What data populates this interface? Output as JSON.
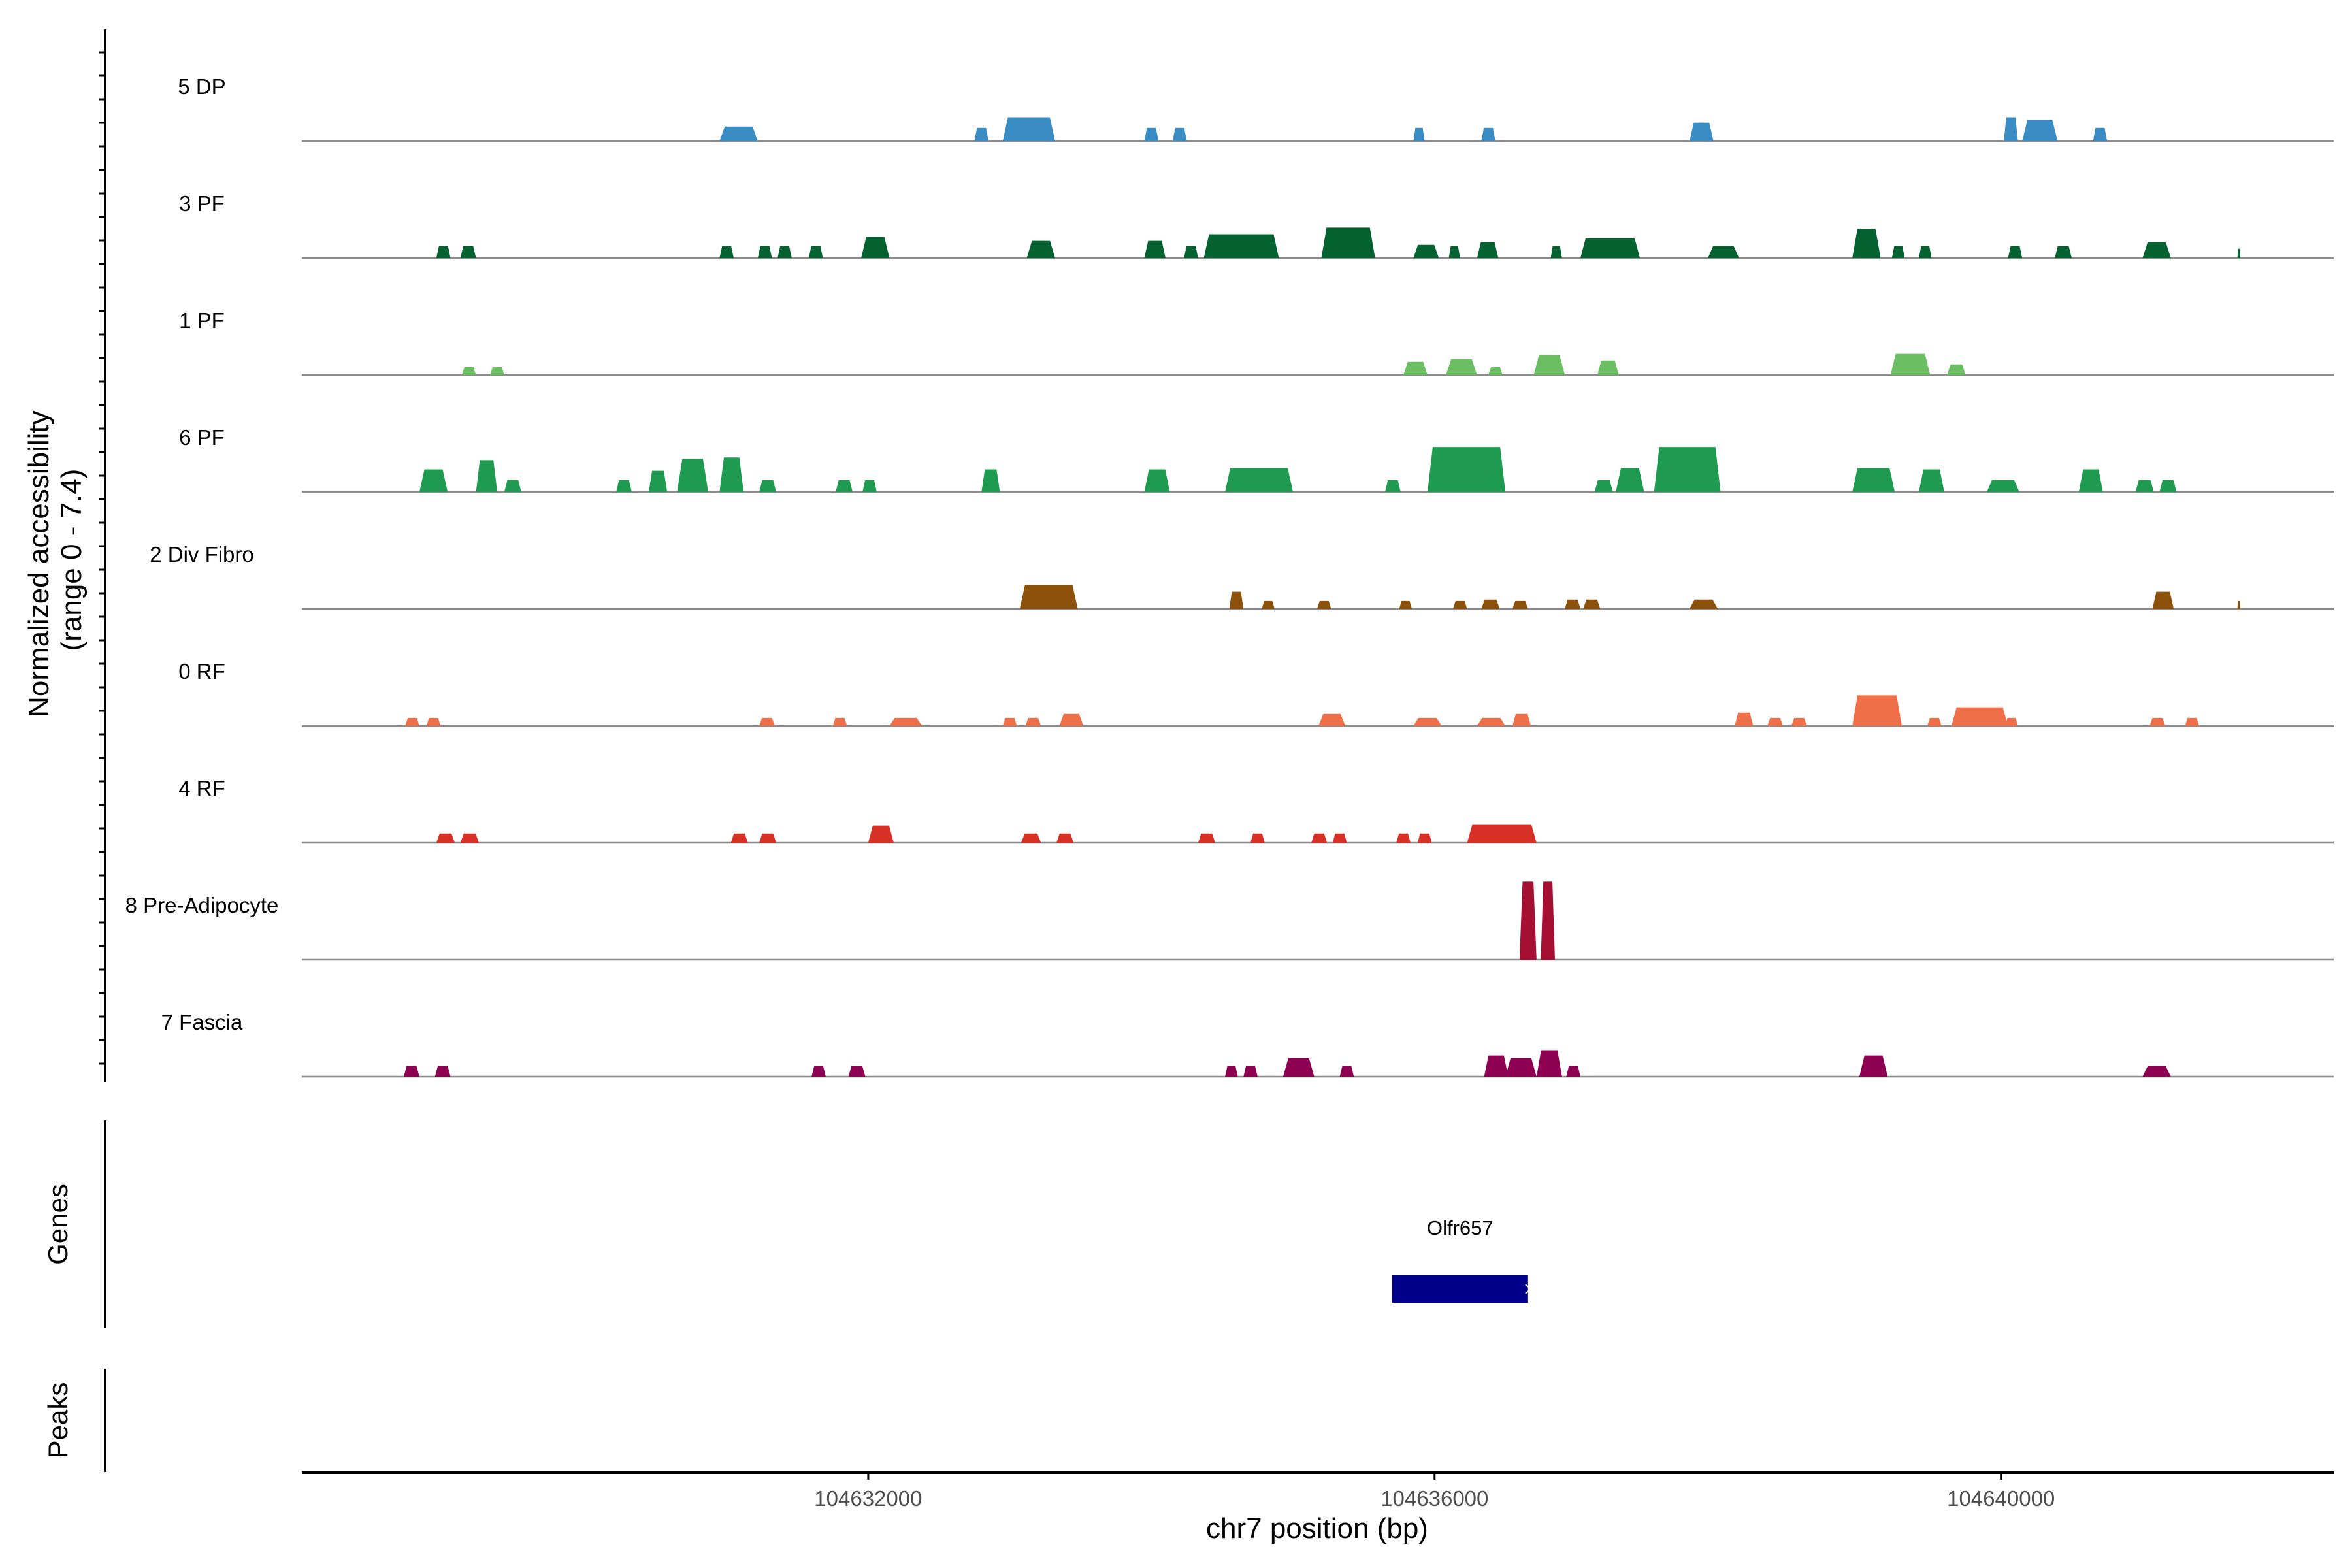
{
  "chart_data": {
    "type": "area",
    "title": "",
    "xlabel": "chr7 position (bp)",
    "ylabel": "Normalized accessibility\n(range 0 - 7.4)",
    "y_range": [
      0,
      7.4
    ],
    "x_range": [
      104628000,
      104642350
    ],
    "x_ticks": [
      104632000,
      104636000,
      104640000
    ],
    "x_tick_labels": [
      "104632000",
      "104636000",
      "104640000"
    ],
    "grid": false,
    "tracks": [
      {
        "name": "5 DP",
        "color": "#3a8cc4",
        "peaks": [
          [
            104630950,
            104631220,
            1.1
          ],
          [
            104632750,
            104632850,
            1.0
          ],
          [
            104632950,
            104633320,
            1.8
          ],
          [
            104633950,
            104634050,
            1.0
          ],
          [
            104634150,
            104634250,
            1.0
          ],
          [
            104635850,
            104635930,
            1.0
          ],
          [
            104636330,
            104636430,
            1.0
          ],
          [
            104637800,
            104637970,
            1.4
          ],
          [
            104640020,
            104640120,
            1.8
          ],
          [
            104640150,
            104640400,
            1.6
          ],
          [
            104640650,
            104640750,
            1.0
          ]
        ]
      },
      {
        "name": "3 PF",
        "color": "#03622f",
        "peaks": [
          [
            104628950,
            104629050,
            0.9
          ],
          [
            104629120,
            104629230,
            0.9
          ],
          [
            104630950,
            104631050,
            0.9
          ],
          [
            104631220,
            104631320,
            0.9
          ],
          [
            104631360,
            104631460,
            0.9
          ],
          [
            104631580,
            104631680,
            0.9
          ],
          [
            104631950,
            104632150,
            1.6
          ],
          [
            104633120,
            104633320,
            1.3
          ],
          [
            104633950,
            104634100,
            1.3
          ],
          [
            104634230,
            104634330,
            0.9
          ],
          [
            104634370,
            104634900,
            1.8
          ],
          [
            104635200,
            104635580,
            2.3
          ],
          [
            104635850,
            104636030,
            1.0
          ],
          [
            104636100,
            104636180,
            0.9
          ],
          [
            104636300,
            104636450,
            1.2
          ],
          [
            104636820,
            104636900,
            0.9
          ],
          [
            104637030,
            104637450,
            1.5
          ],
          [
            104637930,
            104638150,
            0.9
          ],
          [
            104638950,
            104639150,
            2.2
          ],
          [
            104639230,
            104639320,
            0.9
          ],
          [
            104639420,
            104639510,
            0.9
          ],
          [
            104640050,
            104640150,
            0.9
          ],
          [
            104640380,
            104640500,
            0.9
          ],
          [
            104641000,
            104641200,
            1.2
          ],
          [
            104641670,
            104641690,
            0.7
          ]
        ]
      },
      {
        "name": "1 PF",
        "color": "#6cbe63",
        "peaks": [
          [
            104629130,
            104629230,
            0.6
          ],
          [
            104629330,
            104629430,
            0.6
          ],
          [
            104635780,
            104635950,
            1.0
          ],
          [
            104636080,
            104636300,
            1.2
          ],
          [
            104636380,
            104636480,
            0.6
          ],
          [
            104636700,
            104636920,
            1.5
          ],
          [
            104637150,
            104637300,
            1.1
          ],
          [
            104639220,
            104639500,
            1.6
          ],
          [
            104639620,
            104639750,
            0.8
          ]
        ]
      },
      {
        "name": "6 PF",
        "color": "#1e9b51",
        "peaks": [
          [
            104628830,
            104629030,
            1.7
          ],
          [
            104629230,
            104629380,
            2.4
          ],
          [
            104629430,
            104629550,
            0.9
          ],
          [
            104630220,
            104630330,
            0.9
          ],
          [
            104630450,
            104630580,
            1.6
          ],
          [
            104630650,
            104630870,
            2.5
          ],
          [
            104630950,
            104631120,
            2.6
          ],
          [
            104631230,
            104631350,
            0.9
          ],
          [
            104631770,
            104631890,
            0.9
          ],
          [
            104631960,
            104632060,
            0.9
          ],
          [
            104632800,
            104632930,
            1.7
          ],
          [
            104633950,
            104634130,
            1.7
          ],
          [
            104634520,
            104635000,
            1.8
          ],
          [
            104635650,
            104635760,
            0.9
          ],
          [
            104635950,
            104636500,
            3.4
          ],
          [
            104637130,
            104637260,
            0.9
          ],
          [
            104637280,
            104637480,
            1.8
          ],
          [
            104637550,
            104638020,
            3.4
          ],
          [
            104638950,
            104639250,
            1.8
          ],
          [
            104639420,
            104639600,
            1.7
          ],
          [
            104639900,
            104640130,
            0.9
          ],
          [
            104640550,
            104640720,
            1.7
          ],
          [
            104640950,
            104641080,
            0.9
          ],
          [
            104641120,
            104641240,
            0.9
          ]
        ]
      },
      {
        "name": "2 Div Fibro",
        "color": "#8c510a",
        "peaks": [
          [
            104633070,
            104633480,
            1.8
          ],
          [
            104634550,
            104634650,
            1.3
          ],
          [
            104634780,
            104634870,
            0.6
          ],
          [
            104635170,
            104635270,
            0.6
          ],
          [
            104635750,
            104635840,
            0.6
          ],
          [
            104636130,
            104636230,
            0.6
          ],
          [
            104636330,
            104636460,
            0.7
          ],
          [
            104636550,
            104636660,
            0.6
          ],
          [
            104636920,
            104637030,
            0.7
          ],
          [
            104637050,
            104637170,
            0.7
          ],
          [
            104637800,
            104638000,
            0.7
          ],
          [
            104641070,
            104641220,
            1.3
          ],
          [
            104641670,
            104641690,
            0.6
          ]
        ]
      },
      {
        "name": "0 RF",
        "color": "#ee6f48",
        "peaks": [
          [
            104628730,
            104628830,
            0.6
          ],
          [
            104628880,
            104628980,
            0.6
          ],
          [
            104631230,
            104631340,
            0.6
          ],
          [
            104631750,
            104631850,
            0.6
          ],
          [
            104632150,
            104632380,
            0.6
          ],
          [
            104632950,
            104633050,
            0.6
          ],
          [
            104633110,
            104633220,
            0.6
          ],
          [
            104633350,
            104633520,
            0.9
          ],
          [
            104635180,
            104635370,
            0.9
          ],
          [
            104635850,
            104636050,
            0.6
          ],
          [
            104636300,
            104636500,
            0.6
          ],
          [
            104636550,
            104636680,
            0.9
          ],
          [
            104638120,
            104638250,
            1.0
          ],
          [
            104638350,
            104638460,
            0.6
          ],
          [
            104638520,
            104638630,
            0.6
          ],
          [
            104638950,
            104639300,
            2.3
          ],
          [
            104639480,
            104639580,
            0.6
          ],
          [
            104639650,
            104640050,
            1.4
          ],
          [
            104640030,
            104640120,
            0.6
          ],
          [
            104641050,
            104641160,
            0.6
          ],
          [
            104641300,
            104641400,
            0.6
          ]
        ]
      },
      {
        "name": "4 RF",
        "color": "#d73027",
        "peaks": [
          [
            104628950,
            104629080,
            0.7
          ],
          [
            104629120,
            104629250,
            0.7
          ],
          [
            104631030,
            104631150,
            0.7
          ],
          [
            104631230,
            104631350,
            0.7
          ],
          [
            104632000,
            104632180,
            1.3
          ],
          [
            104633080,
            104633220,
            0.7
          ],
          [
            104633330,
            104633450,
            0.7
          ],
          [
            104634330,
            104634450,
            0.7
          ],
          [
            104634700,
            104634800,
            0.7
          ],
          [
            104635130,
            104635240,
            0.7
          ],
          [
            104635280,
            104635380,
            0.7
          ],
          [
            104635730,
            104635830,
            0.7
          ],
          [
            104635880,
            104635980,
            0.7
          ],
          [
            104636230,
            104636720,
            1.4
          ]
        ]
      },
      {
        "name": "8 Pre-Adipocyte",
        "color": "#a50f32",
        "peaks": [
          [
            104636600,
            104636720,
            5.9
          ],
          [
            104636750,
            104636850,
            5.9
          ]
        ]
      },
      {
        "name": "7 Fascia",
        "color": "#8e0152",
        "peaks": [
          [
            104628720,
            104628830,
            0.8
          ],
          [
            104628940,
            104629050,
            0.8
          ],
          [
            104631600,
            104631700,
            0.8
          ],
          [
            104631860,
            104631980,
            0.8
          ],
          [
            104634520,
            104634610,
            0.8
          ],
          [
            104634650,
            104634750,
            0.8
          ],
          [
            104634930,
            104635150,
            1.4
          ],
          [
            104635330,
            104635430,
            0.8
          ],
          [
            104636350,
            104636520,
            1.6
          ],
          [
            104636500,
            104636720,
            1.4
          ],
          [
            104636720,
            104636900,
            2.0
          ],
          [
            104636930,
            104637030,
            0.8
          ],
          [
            104639000,
            104639200,
            1.6
          ],
          [
            104641000,
            104641200,
            0.8
          ]
        ]
      }
    ],
    "panels": {
      "accessibility": "",
      "genes": "Genes",
      "peaks": "Peaks"
    },
    "genes": [
      {
        "name": "Olfr657",
        "start": 104635700,
        "end": 104636660,
        "strand": "+",
        "color": "#00008b"
      }
    ]
  }
}
